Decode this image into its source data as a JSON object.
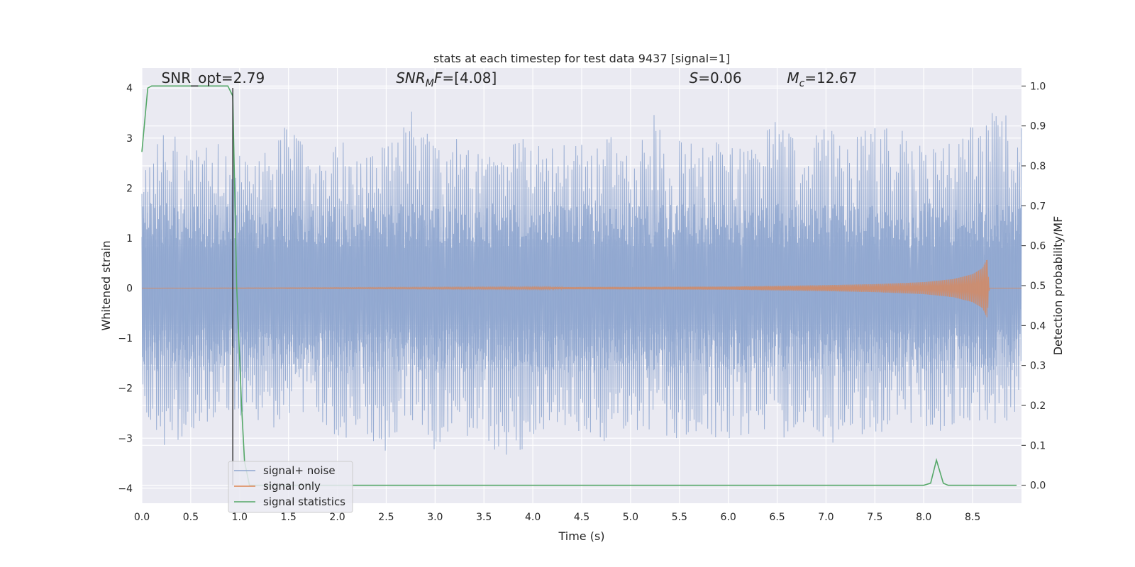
{
  "chart_data": {
    "type": "line",
    "title": "stats at each timestep for test data 9437 [signal=1]",
    "xlabel": "Time (s)",
    "ylabel": "Whitened strain",
    "ylabel_right": "Detection probability/MF",
    "xlim": [
      0.0,
      9.0
    ],
    "ylim": [
      -4.3,
      4.4
    ],
    "ylim_right": [
      -0.045,
      1.045
    ],
    "x_ticks": [
      0.0,
      0.5,
      1.0,
      1.5,
      2.0,
      2.5,
      3.0,
      3.5,
      4.0,
      4.5,
      5.0,
      5.5,
      6.0,
      6.5,
      7.0,
      7.5,
      8.0,
      8.5
    ],
    "x_tick_labels": [
      "0.0",
      "0.5",
      "1.0",
      "1.5",
      "2.0",
      "2.5",
      "3.0",
      "3.5",
      "4.0",
      "4.5",
      "5.0",
      "5.5",
      "6.0",
      "6.5",
      "7.0",
      "7.5",
      "8.0",
      "8.5"
    ],
    "y_ticks": [
      -4,
      -3,
      -2,
      -1,
      0,
      1,
      2,
      3,
      4
    ],
    "y_tick_labels": [
      "−4",
      "−3",
      "−2",
      "−1",
      "0",
      "1",
      "2",
      "3",
      "4"
    ],
    "y_ticks_right": [
      0.0,
      0.1,
      0.2,
      0.3,
      0.4,
      0.5,
      0.6,
      0.7,
      0.8,
      0.9,
      1.0
    ],
    "y_tick_labels_right": [
      "0.0",
      "0.1",
      "0.2",
      "0.3",
      "0.4",
      "0.5",
      "0.6",
      "0.7",
      "0.8",
      "0.9",
      "1.0"
    ],
    "grid": true,
    "legend_position": "lower-left",
    "vline_x": 0.93,
    "annotations": [
      {
        "text": "SNR_opt=2.79",
        "x": 0.2,
        "y": 4.1
      },
      {
        "base": "SNR",
        "sub": "M",
        "tail": "F=[4.08]",
        "italic": true,
        "x": 2.6,
        "y": 4.1
      },
      {
        "base": "S",
        "sub": "",
        "tail": "=0.06",
        "italic": true,
        "x": 5.6,
        "y": 4.1
      },
      {
        "base": "M",
        "sub": "c",
        "tail": "=12.67",
        "italic": true,
        "x": 6.6,
        "y": 4.1
      }
    ],
    "series": [
      {
        "name": "signal+ noise",
        "color": "#8fa6cf",
        "axis": "left",
        "envelope": {
          "x": [
            0.0,
            0.25,
            0.5,
            0.75,
            1.0,
            1.25,
            1.5,
            1.75,
            2.0,
            2.25,
            2.5,
            2.75,
            3.0,
            3.25,
            3.5,
            3.75,
            4.0,
            4.25,
            4.5,
            4.75,
            5.0,
            5.25,
            5.5,
            5.75,
            6.0,
            6.25,
            6.5,
            6.75,
            7.0,
            7.25,
            7.5,
            7.75,
            8.0,
            8.25,
            8.5,
            8.75,
            9.0
          ],
          "upper": [
            2.5,
            3.2,
            2.8,
            3.0,
            2.9,
            2.8,
            3.4,
            2.6,
            2.9,
            3.0,
            2.9,
            3.7,
            2.9,
            3.0,
            2.6,
            3.2,
            2.9,
            2.8,
            3.0,
            3.2,
            2.7,
            3.5,
            3.0,
            2.8,
            3.1,
            2.9,
            3.4,
            2.8,
            3.3,
            3.0,
            3.3,
            3.2,
            2.8,
            2.9,
            3.3,
            4.0,
            3.3
          ],
          "lower": [
            -2.6,
            -3.2,
            -2.9,
            -2.6,
            -2.7,
            -2.8,
            -2.8,
            -2.5,
            -3.1,
            -2.8,
            -3.5,
            -2.6,
            -3.3,
            -2.8,
            -3.3,
            -3.6,
            -3.0,
            -2.7,
            -2.9,
            -3.1,
            -2.8,
            -3.0,
            -3.0,
            -2.8,
            -3.2,
            -2.9,
            -3.1,
            -2.8,
            -3.2,
            -2.9,
            -3.1,
            -2.6,
            -2.8,
            -3.0,
            -2.8,
            -2.9,
            -2.6
          ]
        }
      },
      {
        "name": "signal only",
        "color": "#dd8452",
        "axis": "left",
        "envelope": {
          "x": [
            0.0,
            6.0,
            7.0,
            7.5,
            8.0,
            8.3,
            8.5,
            8.6,
            8.65,
            8.67,
            9.0
          ],
          "amplitude": [
            0.0,
            0.03,
            0.06,
            0.08,
            0.12,
            0.18,
            0.28,
            0.4,
            0.6,
            0.0,
            0.0
          ]
        }
      },
      {
        "name": "signal statistics",
        "color": "#55a868",
        "axis": "right",
        "x": [
          0.0,
          0.06,
          0.1,
          0.2,
          0.5,
          0.8,
          0.88,
          0.93,
          0.97,
          1.02,
          1.05,
          1.1,
          1.2,
          1.5,
          2.0,
          3.0,
          4.0,
          5.0,
          6.0,
          7.0,
          8.0,
          8.07,
          8.13,
          8.2,
          8.25,
          8.3,
          8.4,
          8.6,
          8.95
        ],
        "y": [
          0.835,
          0.995,
          1.0,
          1.0,
          1.0,
          1.0,
          1.0,
          0.975,
          0.5,
          0.2,
          0.06,
          0.0,
          0.0,
          0.0,
          0.0,
          0.0,
          0.0,
          0.0,
          0.0,
          0.0,
          0.0,
          0.005,
          0.063,
          0.005,
          0.0,
          0.0,
          0.0,
          0.0,
          0.0
        ]
      }
    ]
  }
}
